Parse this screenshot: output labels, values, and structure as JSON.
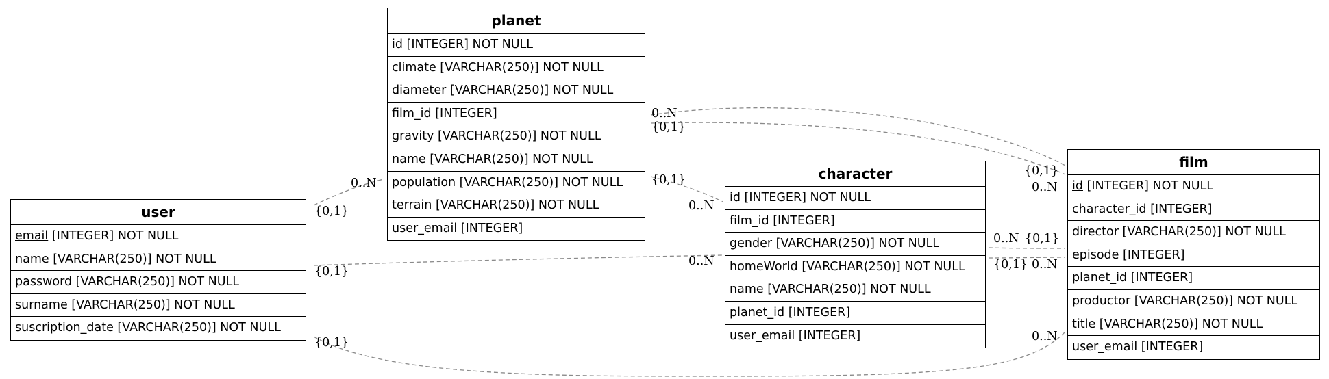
{
  "entities": {
    "planet": {
      "title": "planet",
      "rows": [
        {
          "pk": "id",
          "rest": " [INTEGER] NOT NULL"
        },
        {
          "pk": "",
          "rest": "climate [VARCHAR(250)] NOT NULL"
        },
        {
          "pk": "",
          "rest": "diameter [VARCHAR(250)] NOT NULL"
        },
        {
          "pk": "",
          "rest": "film_id [INTEGER]"
        },
        {
          "pk": "",
          "rest": "gravity [VARCHAR(250)] NOT NULL"
        },
        {
          "pk": "",
          "rest": "name [VARCHAR(250)] NOT NULL"
        },
        {
          "pk": "",
          "rest": "population [VARCHAR(250)] NOT NULL"
        },
        {
          "pk": "",
          "rest": "terrain [VARCHAR(250)] NOT NULL"
        },
        {
          "pk": "",
          "rest": "user_email [INTEGER]"
        }
      ]
    },
    "user": {
      "title": "user",
      "rows": [
        {
          "pk": "email",
          "rest": " [INTEGER] NOT NULL"
        },
        {
          "pk": "",
          "rest": "name [VARCHAR(250)] NOT NULL"
        },
        {
          "pk": "",
          "rest": "password [VARCHAR(250)] NOT NULL"
        },
        {
          "pk": "",
          "rest": "surname [VARCHAR(250)] NOT NULL"
        },
        {
          "pk": "",
          "rest": "suscription_date [VARCHAR(250)] NOT NULL"
        }
      ]
    },
    "character": {
      "title": "character",
      "rows": [
        {
          "pk": "id",
          "rest": " [INTEGER] NOT NULL"
        },
        {
          "pk": "",
          "rest": "film_id [INTEGER]"
        },
        {
          "pk": "",
          "rest": "gender [VARCHAR(250)] NOT NULL"
        },
        {
          "pk": "",
          "rest": "homeWorld [VARCHAR(250)] NOT NULL"
        },
        {
          "pk": "",
          "rest": "name [VARCHAR(250)] NOT NULL"
        },
        {
          "pk": "",
          "rest": "planet_id [INTEGER]"
        },
        {
          "pk": "",
          "rest": "user_email [INTEGER]"
        }
      ]
    },
    "film": {
      "title": "film",
      "rows": [
        {
          "pk": "id",
          "rest": " [INTEGER] NOT NULL"
        },
        {
          "pk": "",
          "rest": "character_id [INTEGER]"
        },
        {
          "pk": "",
          "rest": "director [VARCHAR(250)] NOT NULL"
        },
        {
          "pk": "",
          "rest": "episode [INTEGER]"
        },
        {
          "pk": "",
          "rest": "planet_id [INTEGER]"
        },
        {
          "pk": "",
          "rest": "productor [VARCHAR(250)] NOT NULL"
        },
        {
          "pk": "",
          "rest": "title [VARCHAR(250)] NOT NULL"
        },
        {
          "pk": "",
          "rest": "user_email [INTEGER]"
        }
      ]
    }
  },
  "cardinalities": {
    "user_planet_user": "{0,1}",
    "user_planet_planet": "0..N",
    "user_character_user": "{0,1}",
    "user_character_character": "0..N",
    "user_film_user": "{0,1}",
    "user_film_film": "0..N",
    "planet_film_a_planet": "0..N",
    "planet_film_a_film": "{0,1}",
    "planet_film_b_planet": "{0,1}",
    "planet_film_b_film": "0..N",
    "planet_character_planet": "{0,1}",
    "planet_character_character": "0..N",
    "character_film_a_character": "0..N",
    "character_film_a_film": "{0,1}",
    "character_film_b_character": "{0,1}",
    "character_film_b_film": "0..N"
  },
  "colors": {
    "edge": "#8a8a8a",
    "border": "#000000"
  }
}
